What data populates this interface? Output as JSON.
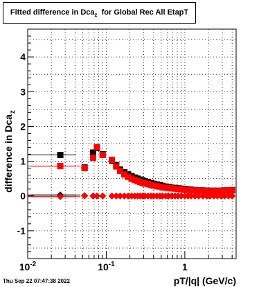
{
  "title": {
    "main": "Fitted difference in Dca",
    "sub": "z",
    "suffix": "for Global Rec All EtapT"
  },
  "footer": "Thu Sep 22 07:47:38 2022",
  "chart_data": {
    "type": "scatter",
    "xlabel": "pT/|q| (GeV/c)",
    "ylabel": "difference in Dca",
    "ylabel_sub": "z",
    "x_scale": "log",
    "xlim": [
      0.01,
      4.5
    ],
    "ylim": [
      -1.8,
      4.8
    ],
    "grid": true,
    "x_ticks": [
      {
        "value": 0.01,
        "label": "10",
        "exp": "-2"
      },
      {
        "value": 0.1,
        "label": "10",
        "exp": "-1"
      },
      {
        "value": 1,
        "label": "1",
        "exp": ""
      }
    ],
    "y_ticks": [
      -1,
      0,
      1,
      2,
      3,
      4
    ],
    "series": [
      {
        "marker": "square",
        "color": "#000000",
        "points": [
          [
            0.026,
            1.18,
            0.015
          ],
          [
            0.053,
            0.82,
            0.005
          ],
          [
            0.068,
            1.25,
            0.004
          ],
          [
            0.076,
            1.38,
            0.004
          ],
          [
            0.09,
            1.2,
            0.004
          ],
          [
            0.118,
            1.02,
            0.004
          ],
          [
            0.134,
            0.88,
            0.004
          ],
          [
            0.15,
            0.76,
            0.004
          ],
          [
            0.17,
            0.68,
            0.004
          ],
          [
            0.19,
            0.62,
            0.004
          ],
          [
            0.21,
            0.57,
            0.004
          ],
          [
            0.23,
            0.53,
            0.004
          ],
          [
            0.25,
            0.5,
            0.004
          ],
          [
            0.27,
            0.47,
            0.004
          ],
          [
            0.29,
            0.45,
            0.004
          ],
          [
            0.31,
            0.42,
            0.004
          ],
          [
            0.34,
            0.4,
            0.004
          ],
          [
            0.37,
            0.37,
            0.004
          ],
          [
            0.4,
            0.35,
            0.004
          ],
          [
            0.44,
            0.33,
            0.004
          ],
          [
            0.48,
            0.31,
            0.004
          ],
          [
            0.52,
            0.29,
            0.004
          ],
          [
            0.57,
            0.27,
            0.004
          ],
          [
            0.62,
            0.26,
            0.004
          ],
          [
            0.68,
            0.24,
            0.004
          ],
          [
            0.75,
            0.23,
            0.004
          ],
          [
            0.82,
            0.22,
            0.004
          ],
          [
            0.9,
            0.21,
            0.004
          ],
          [
            1.0,
            0.2,
            0.004
          ],
          [
            1.1,
            0.19,
            0.004
          ],
          [
            1.2,
            0.18,
            0.004
          ],
          [
            1.35,
            0.17,
            0.004
          ],
          [
            1.5,
            0.16,
            0.004
          ],
          [
            1.7,
            0.16,
            0.004
          ],
          [
            1.9,
            0.15,
            0.004
          ],
          [
            2.1,
            0.15,
            0.004
          ],
          [
            2.35,
            0.15,
            0.004
          ],
          [
            2.6,
            0.15,
            0.004
          ],
          [
            2.9,
            0.15,
            0.004
          ],
          [
            3.2,
            0.16,
            0.004
          ],
          [
            3.6,
            0.16,
            0.004
          ],
          [
            4.0,
            0.17,
            0.004
          ]
        ]
      },
      {
        "marker": "square",
        "color": "#ff0000",
        "points": [
          [
            0.026,
            0.86,
            0.015
          ],
          [
            0.053,
            0.8,
            0.005
          ],
          [
            0.068,
            1.1,
            0.004
          ],
          [
            0.076,
            1.4,
            0.004
          ],
          [
            0.09,
            1.18,
            0.004
          ],
          [
            0.118,
            1.04,
            0.004
          ],
          [
            0.134,
            0.85,
            0.004
          ],
          [
            0.15,
            0.72,
            0.004
          ],
          [
            0.17,
            0.62,
            0.004
          ],
          [
            0.19,
            0.55,
            0.004
          ],
          [
            0.21,
            0.5,
            0.004
          ],
          [
            0.23,
            0.46,
            0.004
          ],
          [
            0.25,
            0.43,
            0.004
          ],
          [
            0.27,
            0.4,
            0.004
          ],
          [
            0.29,
            0.38,
            0.004
          ],
          [
            0.31,
            0.36,
            0.004
          ],
          [
            0.34,
            0.34,
            0.004
          ],
          [
            0.37,
            0.32,
            0.004
          ],
          [
            0.4,
            0.3,
            0.004
          ],
          [
            0.44,
            0.28,
            0.004
          ],
          [
            0.48,
            0.27,
            0.004
          ],
          [
            0.52,
            0.25,
            0.004
          ],
          [
            0.57,
            0.24,
            0.004
          ],
          [
            0.62,
            0.23,
            0.004
          ],
          [
            0.68,
            0.22,
            0.004
          ],
          [
            0.75,
            0.21,
            0.004
          ],
          [
            0.82,
            0.2,
            0.004
          ],
          [
            0.9,
            0.19,
            0.004
          ],
          [
            1.0,
            0.18,
            0.004
          ],
          [
            1.1,
            0.17,
            0.004
          ],
          [
            1.2,
            0.16,
            0.004
          ],
          [
            1.35,
            0.16,
            0.004
          ],
          [
            1.5,
            0.15,
            0.004
          ],
          [
            1.7,
            0.15,
            0.004
          ],
          [
            1.9,
            0.14,
            0.004
          ],
          [
            2.1,
            0.14,
            0.004
          ],
          [
            2.35,
            0.14,
            0.004
          ],
          [
            2.6,
            0.14,
            0.004
          ],
          [
            2.9,
            0.15,
            0.004
          ],
          [
            3.2,
            0.15,
            0.004
          ],
          [
            3.6,
            0.16,
            0.004
          ],
          [
            4.0,
            0.16,
            0.004
          ]
        ]
      },
      {
        "marker": "diamond",
        "color": "#000000",
        "points": [
          [
            0.026,
            0.03,
            0.015
          ],
          [
            0.053,
            0.01,
            0.005
          ],
          [
            0.068,
            0.0,
            0.004
          ],
          [
            0.076,
            0.0,
            0.004
          ],
          [
            0.09,
            0.0,
            0.004
          ],
          [
            0.118,
            0.0,
            0.004
          ],
          [
            0.134,
            0.0,
            0.004
          ],
          [
            0.15,
            0.0,
            0.004
          ],
          [
            0.17,
            0.0,
            0.004
          ],
          [
            0.19,
            0.0,
            0.004
          ],
          [
            0.21,
            0.0,
            0.004
          ],
          [
            0.23,
            0.0,
            0.004
          ],
          [
            0.25,
            0.0,
            0.004
          ],
          [
            0.27,
            0.0,
            0.004
          ],
          [
            0.29,
            0.0,
            0.004
          ],
          [
            0.31,
            0.0,
            0.004
          ],
          [
            0.34,
            0.0,
            0.004
          ],
          [
            0.37,
            0.0,
            0.004
          ],
          [
            0.4,
            0.0,
            0.004
          ],
          [
            0.44,
            0.0,
            0.004
          ],
          [
            0.48,
            0.0,
            0.004
          ],
          [
            0.52,
            0.0,
            0.004
          ],
          [
            0.57,
            0.0,
            0.004
          ],
          [
            0.62,
            0.0,
            0.004
          ],
          [
            0.68,
            0.0,
            0.004
          ],
          [
            0.75,
            0.0,
            0.004
          ],
          [
            0.82,
            0.0,
            0.004
          ],
          [
            0.9,
            0.0,
            0.004
          ],
          [
            1.0,
            0.0,
            0.004
          ],
          [
            1.1,
            0.0,
            0.004
          ],
          [
            1.2,
            0.0,
            0.004
          ],
          [
            1.35,
            0.0,
            0.004
          ],
          [
            1.5,
            0.0,
            0.004
          ],
          [
            1.7,
            0.0,
            0.004
          ],
          [
            1.9,
            0.0,
            0.004
          ],
          [
            2.1,
            0.0,
            0.004
          ],
          [
            2.35,
            0.0,
            0.004
          ],
          [
            2.6,
            0.0,
            0.004
          ],
          [
            2.9,
            0.0,
            0.004
          ],
          [
            3.2,
            0.0,
            0.004
          ],
          [
            3.6,
            0.0,
            0.004
          ],
          [
            4.0,
            0.0,
            0.004
          ]
        ]
      },
      {
        "marker": "diamond",
        "color": "#ff0000",
        "points": [
          [
            0.026,
            -0.02,
            0.015
          ],
          [
            0.053,
            0.0,
            0.005
          ],
          [
            0.068,
            0.0,
            0.004
          ],
          [
            0.076,
            0.0,
            0.004
          ],
          [
            0.09,
            0.0,
            0.004
          ],
          [
            0.118,
            0.0,
            0.004
          ],
          [
            0.134,
            0.0,
            0.004
          ],
          [
            0.15,
            0.0,
            0.004
          ],
          [
            0.17,
            0.0,
            0.004
          ],
          [
            0.19,
            0.0,
            0.004
          ],
          [
            0.21,
            0.0,
            0.004
          ],
          [
            0.23,
            0.0,
            0.004
          ],
          [
            0.25,
            0.0,
            0.004
          ],
          [
            0.27,
            0.0,
            0.004
          ],
          [
            0.29,
            0.0,
            0.004
          ],
          [
            0.31,
            0.0,
            0.004
          ],
          [
            0.34,
            0.0,
            0.004
          ],
          [
            0.37,
            0.0,
            0.004
          ],
          [
            0.4,
            0.0,
            0.004
          ],
          [
            0.44,
            0.0,
            0.004
          ],
          [
            0.48,
            0.0,
            0.004
          ],
          [
            0.52,
            0.0,
            0.004
          ],
          [
            0.57,
            0.0,
            0.004
          ],
          [
            0.62,
            0.0,
            0.004
          ],
          [
            0.68,
            0.0,
            0.004
          ],
          [
            0.75,
            0.0,
            0.004
          ],
          [
            0.82,
            0.0,
            0.004
          ],
          [
            0.9,
            0.0,
            0.004
          ],
          [
            1.0,
            0.0,
            0.004
          ],
          [
            1.1,
            0.0,
            0.004
          ],
          [
            1.2,
            0.0,
            0.004
          ],
          [
            1.35,
            0.0,
            0.004
          ],
          [
            1.5,
            0.0,
            0.004
          ],
          [
            1.7,
            0.0,
            0.004
          ],
          [
            1.9,
            0.0,
            0.004
          ],
          [
            2.1,
            0.0,
            0.004
          ],
          [
            2.35,
            0.0,
            0.004
          ],
          [
            2.6,
            0.0,
            0.004
          ],
          [
            2.9,
            0.0,
            0.004
          ],
          [
            3.2,
            0.0,
            0.004
          ],
          [
            3.6,
            0.0,
            0.004
          ],
          [
            4.0,
            0.0,
            0.004
          ]
        ]
      }
    ],
    "horizontal_error_bars": [
      {
        "series": 0,
        "y": 1.18,
        "x_from": 0.01,
        "x_to": 0.035
      },
      {
        "series": 1,
        "y": 0.86,
        "x_from": 0.01,
        "x_to": 0.047
      },
      {
        "series": 2,
        "y": 0.03,
        "x_from": 0.01,
        "x_to": 0.047
      },
      {
        "series": 3,
        "y": -0.02,
        "x_from": 0.01,
        "x_to": 0.047
      }
    ]
  }
}
